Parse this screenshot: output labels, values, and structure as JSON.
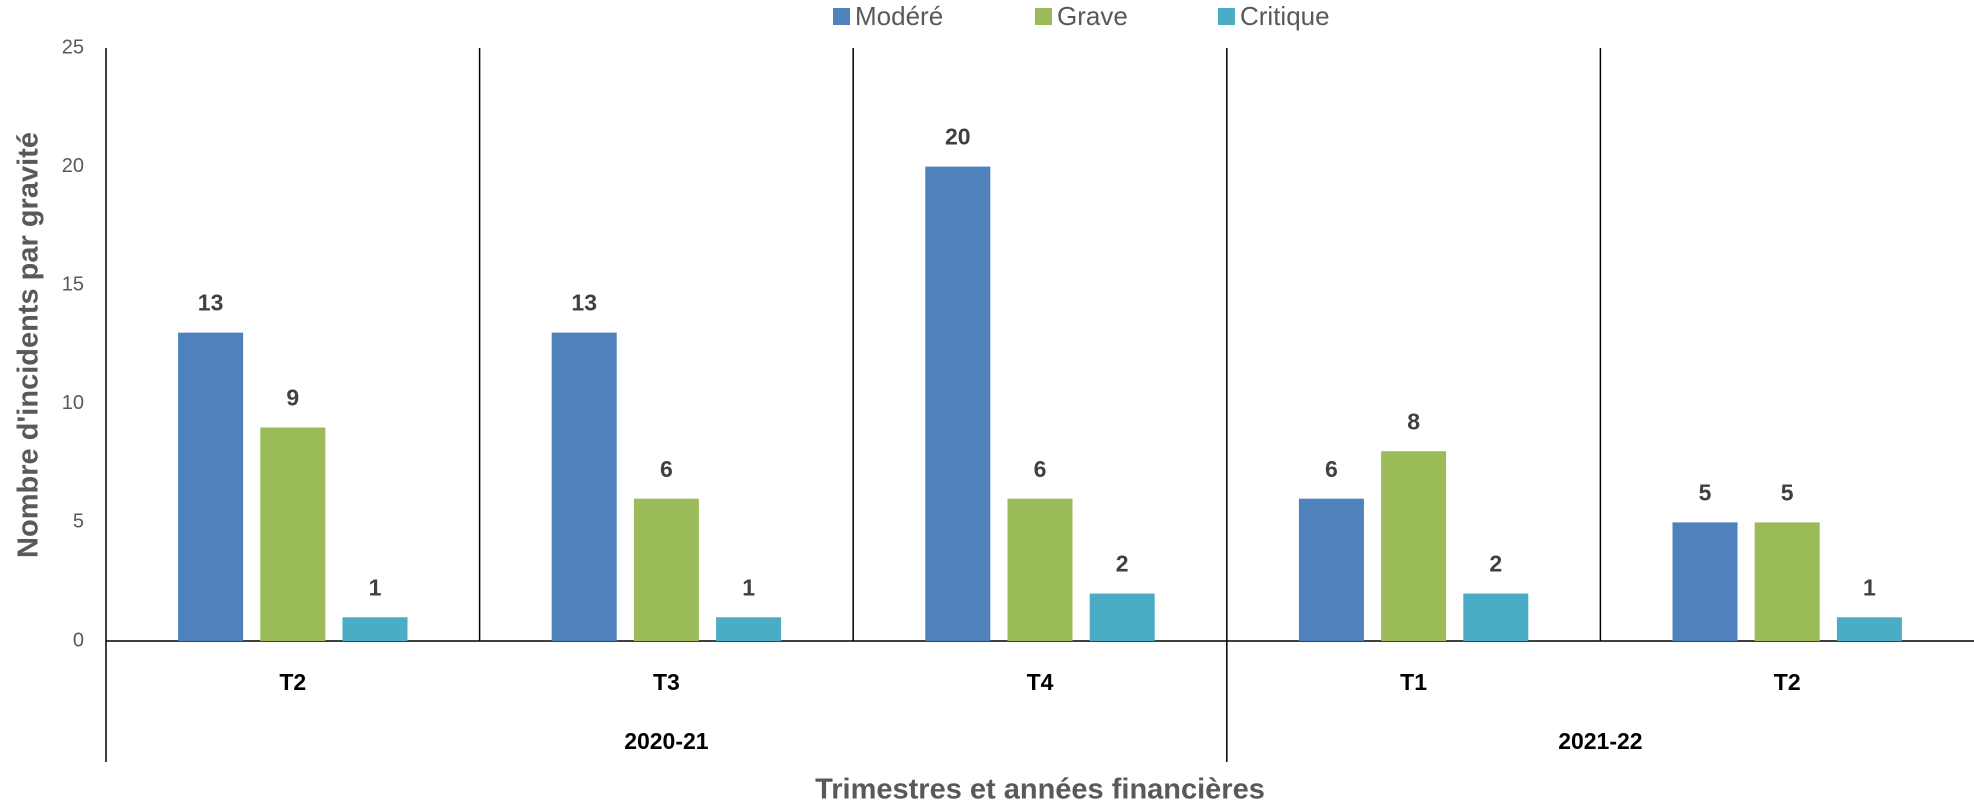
{
  "chart_data": {
    "type": "bar",
    "x_label": "Trimestres et années financières",
    "y_label": "Nombre d'incidents par gravité",
    "groups": [
      {
        "name": "2020-21",
        "categories": [
          "T2",
          "T3",
          "T4"
        ]
      },
      {
        "name": "2021-22",
        "categories": [
          "T1",
          "T2"
        ]
      }
    ],
    "series": [
      {
        "name": "Modéré",
        "color": "#4f81bd",
        "values": [
          13,
          13,
          20,
          6,
          5
        ]
      },
      {
        "name": "Grave",
        "color": "#9bbb59",
        "values": [
          9,
          6,
          6,
          8,
          5
        ]
      },
      {
        "name": "Critique",
        "color": "#4bacc6",
        "values": [
          1,
          1,
          2,
          2,
          1
        ]
      }
    ],
    "ylim": [
      0,
      25
    ],
    "yticks": [
      0,
      5,
      10,
      15,
      20,
      25
    ],
    "legend": "top"
  }
}
